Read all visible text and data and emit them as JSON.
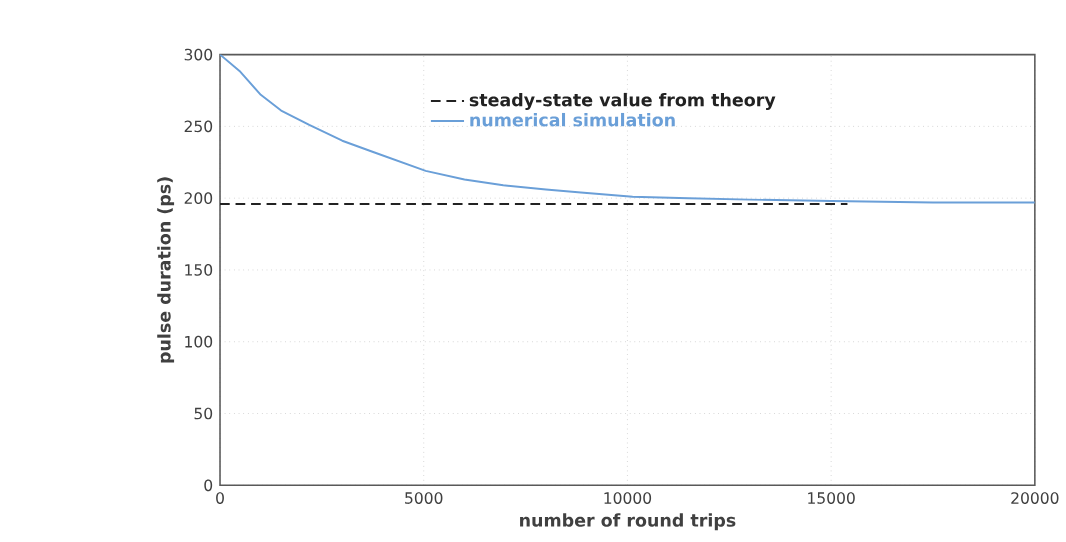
{
  "chart_data": {
    "type": "line",
    "xlabel": "number of round trips",
    "ylabel": "pulse duration (ps)",
    "xlim": [
      0,
      20000
    ],
    "ylim": [
      0,
      300
    ],
    "xticks": [
      0,
      5000,
      10000,
      15000,
      20000
    ],
    "yticks": [
      0,
      50,
      100,
      150,
      200,
      250,
      300
    ],
    "grid": true,
    "legend": "top",
    "marker": "none",
    "series": [
      {
        "name": "steady-state value from theory",
        "color": "#222222",
        "line_style": "dashed",
        "x": [
          0,
          15400
        ],
        "values": [
          196,
          196
        ]
      },
      {
        "name": "numerical simulation",
        "color": "#6a9fd8",
        "line_style": "solid",
        "x": [
          0,
          250,
          500,
          1000,
          1500,
          2190,
          3000,
          3776,
          5048,
          6000,
          6952,
          8000,
          8857,
          10127,
          11500,
          13000,
          15000,
          17500,
          20000
        ],
        "values": [
          300,
          294,
          288,
          272,
          261,
          251,
          240,
          232,
          219,
          213,
          209,
          206,
          204,
          201,
          200,
          199,
          198,
          197,
          197
        ]
      }
    ]
  }
}
